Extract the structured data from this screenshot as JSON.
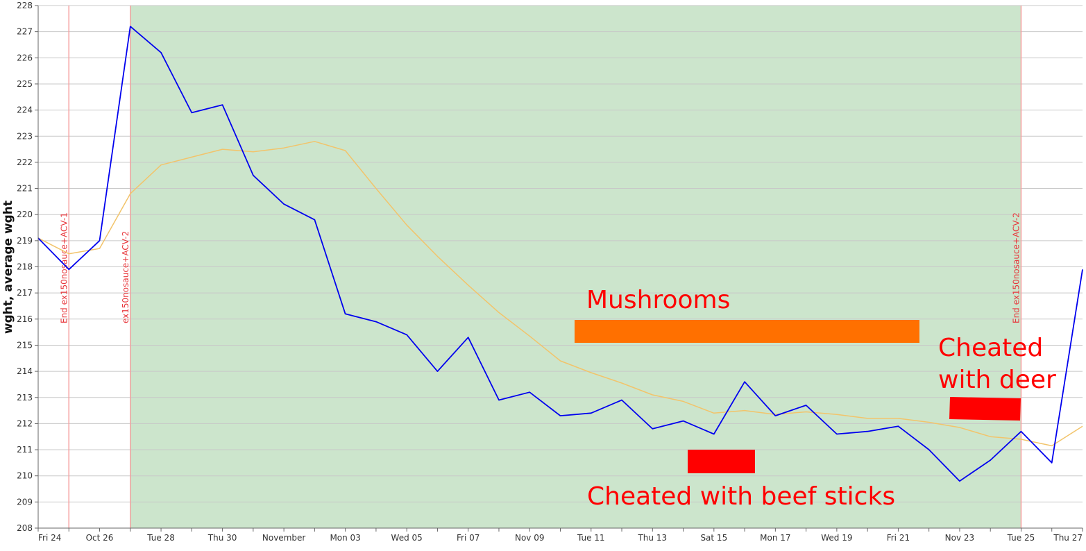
{
  "chart_data": {
    "type": "line",
    "title": "",
    "xlabel": "",
    "ylabel": "wght, average wght",
    "ylim": [
      208,
      228
    ],
    "yticks": [
      208,
      209,
      210,
      211,
      212,
      213,
      214,
      215,
      216,
      217,
      218,
      219,
      220,
      221,
      222,
      223,
      224,
      225,
      226,
      227,
      228
    ],
    "xrange": [
      "2025-10-24",
      "2025-11-27"
    ],
    "x_tick_labels": [
      {
        "date": "2025-10-24",
        "label": "Fri 24"
      },
      {
        "date": "2025-10-26",
        "label": "Oct 26"
      },
      {
        "date": "2025-10-28",
        "label": "Tue 28"
      },
      {
        "date": "2025-10-30",
        "label": "Thu 30"
      },
      {
        "date": "2025-11-01",
        "label": "November"
      },
      {
        "date": "2025-11-03",
        "label": "Mon 03"
      },
      {
        "date": "2025-11-05",
        "label": "Wed 05"
      },
      {
        "date": "2025-11-07",
        "label": "Fri 07"
      },
      {
        "date": "2025-11-09",
        "label": "Nov 09"
      },
      {
        "date": "2025-11-11",
        "label": "Tue 11"
      },
      {
        "date": "2025-11-13",
        "label": "Thu 13"
      },
      {
        "date": "2025-11-15",
        "label": "Sat 15"
      },
      {
        "date": "2025-11-17",
        "label": "Mon 17"
      },
      {
        "date": "2025-11-19",
        "label": "Wed 19"
      },
      {
        "date": "2025-11-21",
        "label": "Fri 21"
      },
      {
        "date": "2025-11-23",
        "label": "Nov 23"
      },
      {
        "date": "2025-11-25",
        "label": "Tue 25"
      },
      {
        "date": "2025-11-27",
        "label": "Thu 27"
      }
    ],
    "x": [
      "2025-10-24",
      "2025-10-25",
      "2025-10-26",
      "2025-10-27",
      "2025-10-28",
      "2025-10-29",
      "2025-10-30",
      "2025-10-31",
      "2025-11-01",
      "2025-11-02",
      "2025-11-03",
      "2025-11-04",
      "2025-11-05",
      "2025-11-06",
      "2025-11-07",
      "2025-11-08",
      "2025-11-09",
      "2025-11-10",
      "2025-11-11",
      "2025-11-12",
      "2025-11-13",
      "2025-11-14",
      "2025-11-15",
      "2025-11-16",
      "2025-11-17",
      "2025-11-18",
      "2025-11-19",
      "2025-11-20",
      "2025-11-21",
      "2025-11-22",
      "2025-11-23",
      "2025-11-24",
      "2025-11-25",
      "2025-11-26",
      "2025-11-27"
    ],
    "series": [
      {
        "color": "#0000ee",
        "values": [
          219.1,
          217.9,
          219.0,
          227.2,
          226.2,
          223.9,
          224.2,
          221.5,
          220.4,
          219.8,
          216.2,
          215.9,
          215.4,
          214.0,
          215.3,
          212.9,
          213.2,
          212.3,
          212.4,
          212.9,
          211.8,
          212.1,
          211.6,
          213.6,
          212.3,
          212.7,
          211.6,
          211.7,
          211.9,
          211.0,
          209.8,
          210.6,
          211.7,
          210.5,
          217.9
        ]
      },
      {
        "color": "#f2c46b",
        "values": [
          219.1,
          218.5,
          218.7,
          220.8,
          221.9,
          222.2,
          222.5,
          222.4,
          222.55,
          222.8,
          222.45,
          221.0,
          219.6,
          218.4,
          217.3,
          216.25,
          215.35,
          214.4,
          213.95,
          213.55,
          213.1,
          212.85,
          212.4,
          212.5,
          212.35,
          212.45,
          212.35,
          212.2,
          212.2,
          212.05,
          211.85,
          211.5,
          211.4,
          211.15,
          211.9
        ]
      }
    ],
    "shaded_region": {
      "start": "2025-10-27",
      "end": "2025-11-25",
      "color": "#cce5cc"
    },
    "markers": [
      {
        "date": "2025-10-25",
        "label": "End ex150nosauce+ACV-1"
      },
      {
        "date": "2025-10-27",
        "label": "ex150nosauce+ACV-2"
      },
      {
        "date": "2025-11-25",
        "label": "End ex150nosauce+ACV-2"
      }
    ],
    "annotations": {
      "mushrooms": {
        "text": "Mushrooms",
        "color": "#ff7000"
      },
      "beef": {
        "text": "Cheated with beef sticks",
        "color": "#ff0000"
      },
      "deer_line1": "Cheated",
      "deer_line2": "with deer",
      "deer_color": "#ff0000"
    }
  }
}
